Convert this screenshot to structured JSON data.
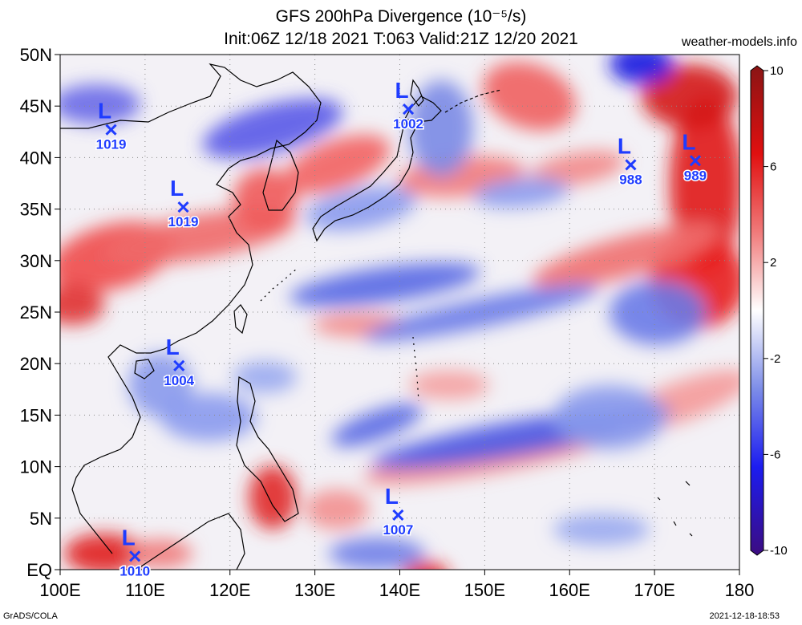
{
  "title_line1": "GFS 200hPa Divergence (10⁻⁵/s)",
  "title_line2": "Init:06Z 12/18 2021 T:063 Valid:21Z 12/20 2021",
  "site": "weather-models.info",
  "footer_left": "GrADS/COLA",
  "footer_right": "2021-12-18-18:53",
  "map": {
    "lon_range": [
      100,
      180
    ],
    "lat_range": [
      0,
      50
    ],
    "lon_ticks": [
      "100E",
      "110E",
      "120E",
      "130E",
      "140E",
      "150E",
      "160E",
      "170E",
      "180"
    ],
    "lat_ticks": [
      "EQ",
      "5N",
      "10N",
      "15N",
      "20N",
      "25N",
      "30N",
      "35N",
      "40N",
      "45N",
      "50N"
    ],
    "gridlines": true
  },
  "colorbar": {
    "labels": [
      "10",
      "6",
      "2",
      "-2",
      "-6",
      "-10"
    ],
    "range": [
      -10,
      10
    ],
    "colors": [
      "#3a0a7a",
      "#1a1aff",
      "#7a8ae8",
      "#ffffff",
      "#f08a8a",
      "#ff1a1a",
      "#9a1010"
    ]
  },
  "lows": [
    {
      "lon": 106,
      "lat": 42.7,
      "pressure": "1019"
    },
    {
      "lon": 114.5,
      "lat": 35.2,
      "pressure": "1019"
    },
    {
      "lon": 141,
      "lat": 44.7,
      "pressure": "1002"
    },
    {
      "lon": 114,
      "lat": 19.8,
      "pressure": "1004"
    },
    {
      "lon": 167.2,
      "lat": 39.3,
      "pressure": "988"
    },
    {
      "lon": 174.8,
      "lat": 39.7,
      "pressure": "989"
    },
    {
      "lon": 139.8,
      "lat": 5.3,
      "pressure": "1007"
    },
    {
      "lon": 108.8,
      "lat": 1.3,
      "pressure": "1010"
    }
  ]
}
